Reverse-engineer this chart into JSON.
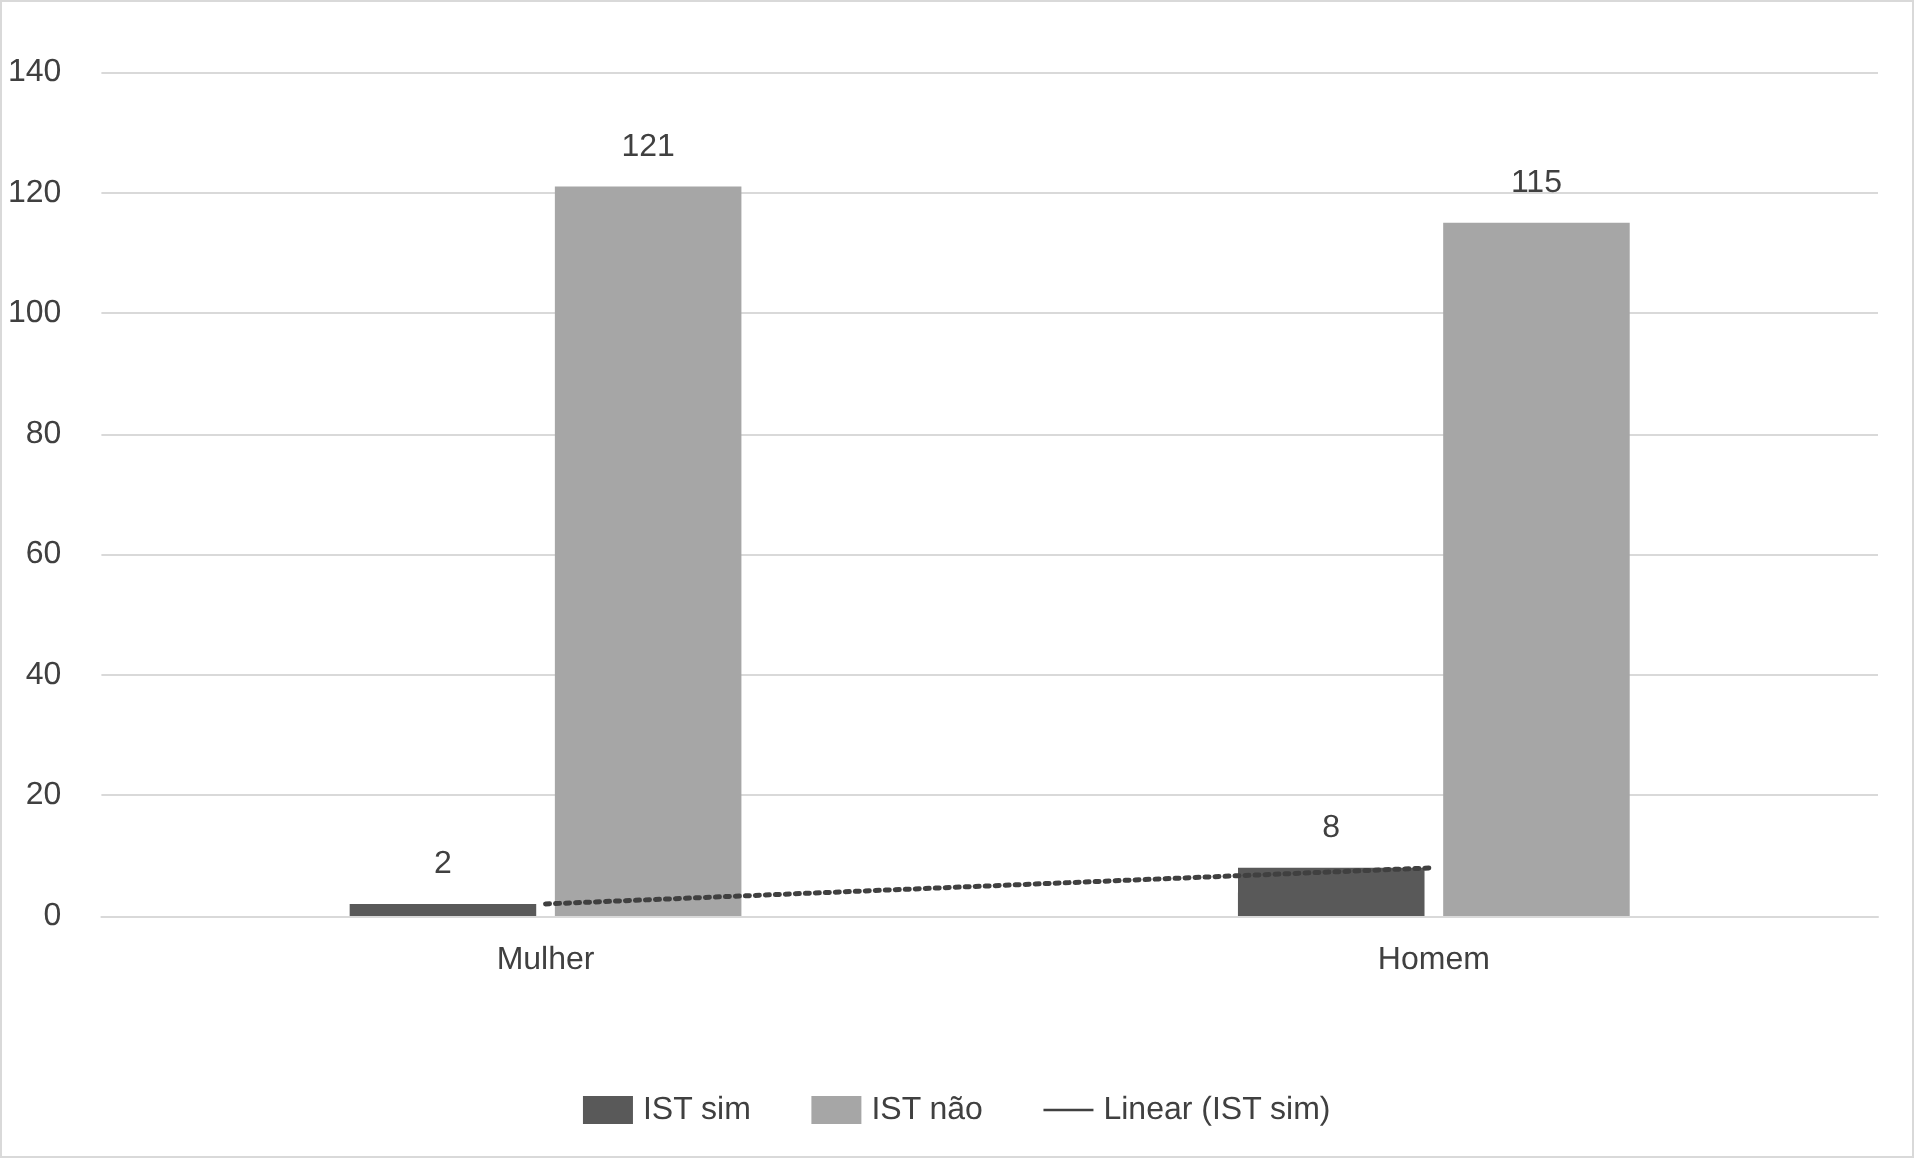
{
  "chart_data": {
    "type": "bar",
    "categories": [
      "Mulher",
      "Homem"
    ],
    "series": [
      {
        "name": "IST sim",
        "color": "#595959",
        "values": [
          2,
          8
        ],
        "value_labels": [
          "2",
          "8"
        ]
      },
      {
        "name": "IST não",
        "color": "#a6a6a6",
        "values": [
          121,
          115
        ],
        "value_labels": [
          "121",
          "115"
        ]
      },
      {
        "name": "Linear (IST sim)",
        "type": "line",
        "color": "#404040",
        "x": [
          "Mulher",
          "Homem"
        ],
        "values": [
          2,
          8
        ],
        "line_style": "dotted",
        "marker": "none"
      }
    ],
    "ylim": [
      0,
      140
    ],
    "yticks": [
      0,
      20,
      40,
      60,
      80,
      100,
      120,
      140
    ],
    "grid": "y",
    "legend": "bottom"
  }
}
